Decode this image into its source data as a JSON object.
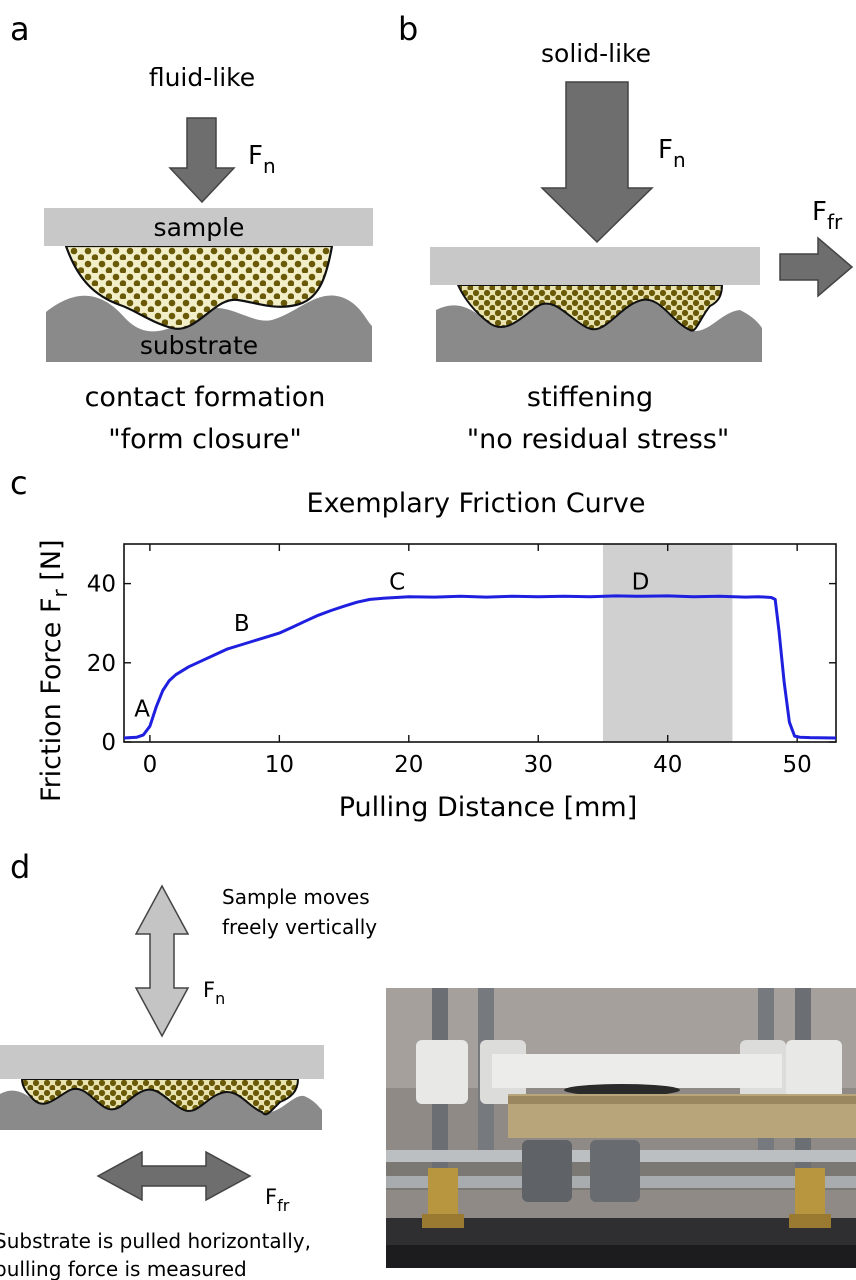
{
  "panel_a": {
    "letter": "a",
    "state_label": "fluid-like",
    "force_label": "F",
    "force_sub": "n",
    "sample_label": "sample",
    "substrate_label": "substrate",
    "caption_line1": "contact formation",
    "caption_line2": "\"form closure\""
  },
  "panel_b": {
    "letter": "b",
    "state_label": "solid-like",
    "normal_force_label": "F",
    "normal_force_sub": "n",
    "friction_force_label": "F",
    "friction_force_sub": "fr",
    "caption_line1": "stiffening",
    "caption_line2": "\"no residual stress\""
  },
  "panel_c": {
    "letter": "c"
  },
  "chart_data": {
    "type": "line",
    "title": "Exemplary Friction Curve",
    "xlabel": "Pulling Distance [mm]",
    "ylabel_main": "Friction Force F",
    "ylabel_sub": "r",
    "ylabel_unit": " [N]",
    "xlim": [
      -2,
      53
    ],
    "ylim": [
      0,
      50
    ],
    "xticks": [
      0,
      10,
      20,
      30,
      40,
      50
    ],
    "yticks": [
      0,
      20,
      40
    ],
    "series": [
      {
        "color": "#1f1fe0",
        "x": [
          -2,
          -1,
          -0.5,
          0,
          0.5,
          1,
          1.5,
          2,
          3,
          4,
          5,
          6,
          7,
          8,
          9,
          10,
          11,
          12,
          13,
          14,
          15,
          16,
          17,
          18,
          19,
          20,
          22,
          24,
          26,
          28,
          30,
          32,
          34,
          36,
          38,
          40,
          42,
          44,
          46,
          47,
          48,
          48.3,
          48.6,
          49,
          49.4,
          49.8,
          50.2,
          51,
          53
        ],
        "y": [
          1,
          1.2,
          1.8,
          4,
          9,
          13,
          15.5,
          17,
          19,
          20.5,
          22,
          23.5,
          24.5,
          25.5,
          26.5,
          27.5,
          29,
          30.5,
          32,
          33.2,
          34.3,
          35.3,
          36,
          36.3,
          36.5,
          36.7,
          36.6,
          36.8,
          36.6,
          36.8,
          36.7,
          36.8,
          36.7,
          36.9,
          36.8,
          36.9,
          36.7,
          36.8,
          36.6,
          36.7,
          36.5,
          36,
          28,
          15,
          5,
          1.5,
          1.2,
          1.1,
          1
        ]
      }
    ],
    "annotations": [
      {
        "text": "A",
        "x": -0.6,
        "y": 6.5
      },
      {
        "text": "B",
        "x": 7.1,
        "y": 28
      },
      {
        "text": "C",
        "x": 19.1,
        "y": 38.5
      },
      {
        "text": "D",
        "x": 37.9,
        "y": 38.5
      }
    ],
    "shaded_region": {
      "x0": 35,
      "x1": 45,
      "color": "#d0d0d0"
    }
  },
  "panel_d": {
    "letter": "d",
    "note_top_line1": "Sample moves",
    "note_top_line2": "freely vertically",
    "normal_force_label": "F",
    "normal_force_sub": "n",
    "friction_force_label": "F",
    "friction_force_sub": "fr",
    "note_bottom_line1": "Substrate is pulled horizontally,",
    "note_bottom_line2": "pulling force is measured"
  },
  "colors": {
    "sample_plate": "#c8c8c8",
    "substrate": "#8a8a8a",
    "arrow_fill": "#6e6e6e",
    "arrow_light": "#c4c4c4",
    "particle_fill": "#6a5a08",
    "particle_bg": "#f2efc8",
    "curve": "#1f1fe0"
  }
}
